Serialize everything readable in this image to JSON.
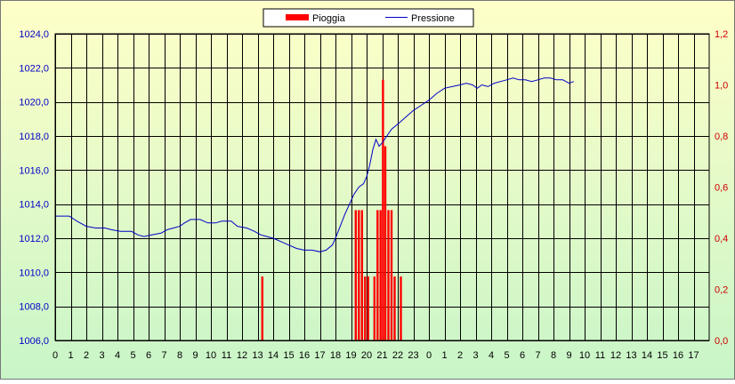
{
  "chart_data": {
    "type": "bar+line",
    "legend": {
      "placement": "top-center",
      "items": [
        {
          "name": "Pioggia",
          "symbol": "bar",
          "color": "#ff0000"
        },
        {
          "name": "Pressione",
          "symbol": "line",
          "color": "#0000c8"
        }
      ]
    },
    "x_tick_labels": [
      "0",
      "1",
      "2",
      "3",
      "4",
      "5",
      "6",
      "7",
      "8",
      "9",
      "10",
      "11",
      "12",
      "13",
      "14",
      "15",
      "16",
      "17",
      "18",
      "19",
      "20",
      "21",
      "22",
      "23",
      "0",
      "1",
      "2",
      "3",
      "4",
      "5",
      "6",
      "7",
      "8",
      "9",
      "10",
      "11",
      "12",
      "13",
      "14",
      "15",
      "16",
      "17"
    ],
    "x_range_hours": [
      0,
      42
    ],
    "y_left": {
      "ticks": [
        "1006,0",
        "1008,0",
        "1010,0",
        "1012,0",
        "1014,0",
        "1016,0",
        "1018,0",
        "1020,0",
        "1022,0",
        "1024,0"
      ],
      "range": [
        1006,
        1024
      ],
      "color": "#0000c8"
    },
    "y_right": {
      "ticks": [
        "0,0",
        "0,2",
        "0,4",
        "0,6",
        "0,8",
        "1,0",
        "1,2"
      ],
      "range": [
        0,
        1.2
      ],
      "color": "#cc0000"
    },
    "grid": true,
    "series": [
      {
        "name": "Pressione",
        "axis": "left",
        "points": [
          [
            0.0,
            1013.3
          ],
          [
            0.9,
            1013.3
          ],
          [
            1.4,
            1013.0
          ],
          [
            2.0,
            1012.7
          ],
          [
            2.6,
            1012.6
          ],
          [
            3.2,
            1012.6
          ],
          [
            3.6,
            1012.5
          ],
          [
            4.2,
            1012.4
          ],
          [
            4.9,
            1012.4
          ],
          [
            5.3,
            1012.2
          ],
          [
            5.7,
            1012.1
          ],
          [
            6.2,
            1012.2
          ],
          [
            6.8,
            1012.3
          ],
          [
            7.2,
            1012.5
          ],
          [
            7.6,
            1012.6
          ],
          [
            8.0,
            1012.7
          ],
          [
            8.3,
            1012.9
          ],
          [
            8.7,
            1013.1
          ],
          [
            9.3,
            1013.1
          ],
          [
            9.8,
            1012.9
          ],
          [
            10.3,
            1012.9
          ],
          [
            10.7,
            1013.0
          ],
          [
            11.3,
            1013.0
          ],
          [
            11.7,
            1012.7
          ],
          [
            12.3,
            1012.6
          ],
          [
            12.8,
            1012.4
          ],
          [
            13.2,
            1012.2
          ],
          [
            13.6,
            1012.1
          ],
          [
            14.0,
            1012.0
          ],
          [
            14.5,
            1011.8
          ],
          [
            15.0,
            1011.6
          ],
          [
            15.5,
            1011.4
          ],
          [
            16.0,
            1011.3
          ],
          [
            16.5,
            1011.3
          ],
          [
            17.0,
            1011.2
          ],
          [
            17.4,
            1011.3
          ],
          [
            17.8,
            1011.6
          ],
          [
            18.0,
            1012.0
          ],
          [
            18.3,
            1012.7
          ],
          [
            18.6,
            1013.4
          ],
          [
            18.9,
            1014.0
          ],
          [
            19.2,
            1014.6
          ],
          [
            19.5,
            1015.0
          ],
          [
            19.8,
            1015.2
          ],
          [
            20.0,
            1015.6
          ],
          [
            20.2,
            1016.3
          ],
          [
            20.4,
            1017.2
          ],
          [
            20.6,
            1017.8
          ],
          [
            20.8,
            1017.4
          ],
          [
            21.0,
            1017.6
          ],
          [
            21.3,
            1018.0
          ],
          [
            21.6,
            1018.4
          ],
          [
            22.0,
            1018.7
          ],
          [
            22.5,
            1019.1
          ],
          [
            23.0,
            1019.5
          ],
          [
            23.5,
            1019.8
          ],
          [
            24.0,
            1020.1
          ],
          [
            24.5,
            1020.5
          ],
          [
            25.0,
            1020.8
          ],
          [
            25.5,
            1020.9
          ],
          [
            26.0,
            1021.0
          ],
          [
            26.4,
            1021.1
          ],
          [
            26.8,
            1021.0
          ],
          [
            27.1,
            1020.8
          ],
          [
            27.4,
            1021.0
          ],
          [
            27.8,
            1020.9
          ],
          [
            28.2,
            1021.1
          ],
          [
            28.6,
            1021.2
          ],
          [
            29.0,
            1021.3
          ],
          [
            29.4,
            1021.4
          ],
          [
            29.8,
            1021.3
          ],
          [
            30.2,
            1021.3
          ],
          [
            30.6,
            1021.2
          ],
          [
            31.0,
            1021.3
          ],
          [
            31.4,
            1021.4
          ],
          [
            31.8,
            1021.4
          ],
          [
            32.2,
            1021.3
          ],
          [
            32.6,
            1021.3
          ],
          [
            33.0,
            1021.1
          ],
          [
            33.3,
            1021.2
          ]
        ]
      },
      {
        "name": "Pioggia",
        "axis": "right",
        "bars": [
          [
            13.3,
            0.25
          ],
          [
            19.3,
            0.51
          ],
          [
            19.5,
            0.51
          ],
          [
            19.7,
            0.51
          ],
          [
            19.9,
            0.25
          ],
          [
            20.1,
            0.25
          ],
          [
            20.5,
            0.25
          ],
          [
            20.7,
            0.51
          ],
          [
            20.9,
            0.51
          ],
          [
            21.05,
            1.02
          ],
          [
            21.2,
            0.76
          ],
          [
            21.4,
            0.51
          ],
          [
            21.6,
            0.51
          ],
          [
            21.8,
            0.25
          ],
          [
            22.2,
            0.25
          ]
        ]
      }
    ]
  }
}
